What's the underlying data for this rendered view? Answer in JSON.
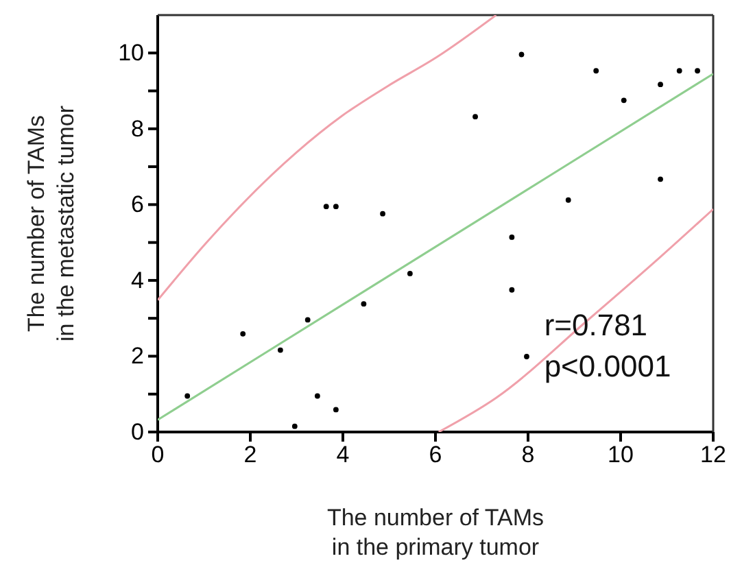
{
  "chart_data": {
    "type": "scatter",
    "xlabel": "The number of TAMs\nin the primary tumor",
    "ylabel": "The number of TAMs\nin the metastatic tumor",
    "xlim": [
      0,
      12
    ],
    "ylim": [
      0,
      11
    ],
    "xticks": [
      0,
      2,
      4,
      6,
      8,
      10,
      12
    ],
    "yticks": [
      0,
      {
        "value": 1,
        "label": null
      },
      2,
      {
        "value": 3,
        "label": null
      },
      4,
      {
        "value": 5,
        "label": null
      },
      6,
      {
        "value": 7,
        "label": null
      },
      8,
      {
        "value": 9,
        "label": null
      },
      10
    ],
    "grid": false,
    "marker": "circle",
    "series": [
      {
        "color": "#000000",
        "x": [
          0.64,
          1.84,
          2.65,
          3.24,
          3.45,
          2.96,
          3.85,
          3.64,
          3.85,
          4.86,
          4.45,
          5.45,
          6.86,
          7.86,
          9.47,
          10.07,
          10.86,
          11.27,
          11.66,
          10.86,
          8.87,
          7.65,
          7.65,
          7.97
        ],
        "values": [
          0.95,
          2.59,
          2.16,
          2.96,
          0.95,
          0.15,
          0.59,
          5.95,
          5.95,
          5.76,
          3.38,
          4.18,
          8.32,
          9.96,
          9.53,
          8.75,
          9.17,
          9.53,
          9.53,
          6.67,
          6.12,
          5.14,
          3.75,
          1.99
        ]
      },
      {
        "type": "line",
        "color": "#8fce8f",
        "marker": "none",
        "x": [
          0,
          12
        ],
        "values": [
          0.32,
          9.45
        ]
      },
      {
        "type": "line",
        "color": "#f0a0aa",
        "marker": "none",
        "x": [
          0,
          1.04,
          3.0,
          3.98,
          4.96,
          6.04,
          7.31
        ],
        "values": [
          3.48,
          4.98,
          7.38,
          8.34,
          9.12,
          9.9,
          11
        ]
      },
      {
        "type": "line",
        "color": "#f0a0aa",
        "marker": "none",
        "x": [
          6.07,
          7.31,
          9.28,
          10.86,
          12
        ],
        "values": [
          0,
          0.9,
          2.94,
          4.62,
          5.88
        ]
      }
    ],
    "annotations": [
      "r=0.781",
      "p<0.0001"
    ]
  }
}
